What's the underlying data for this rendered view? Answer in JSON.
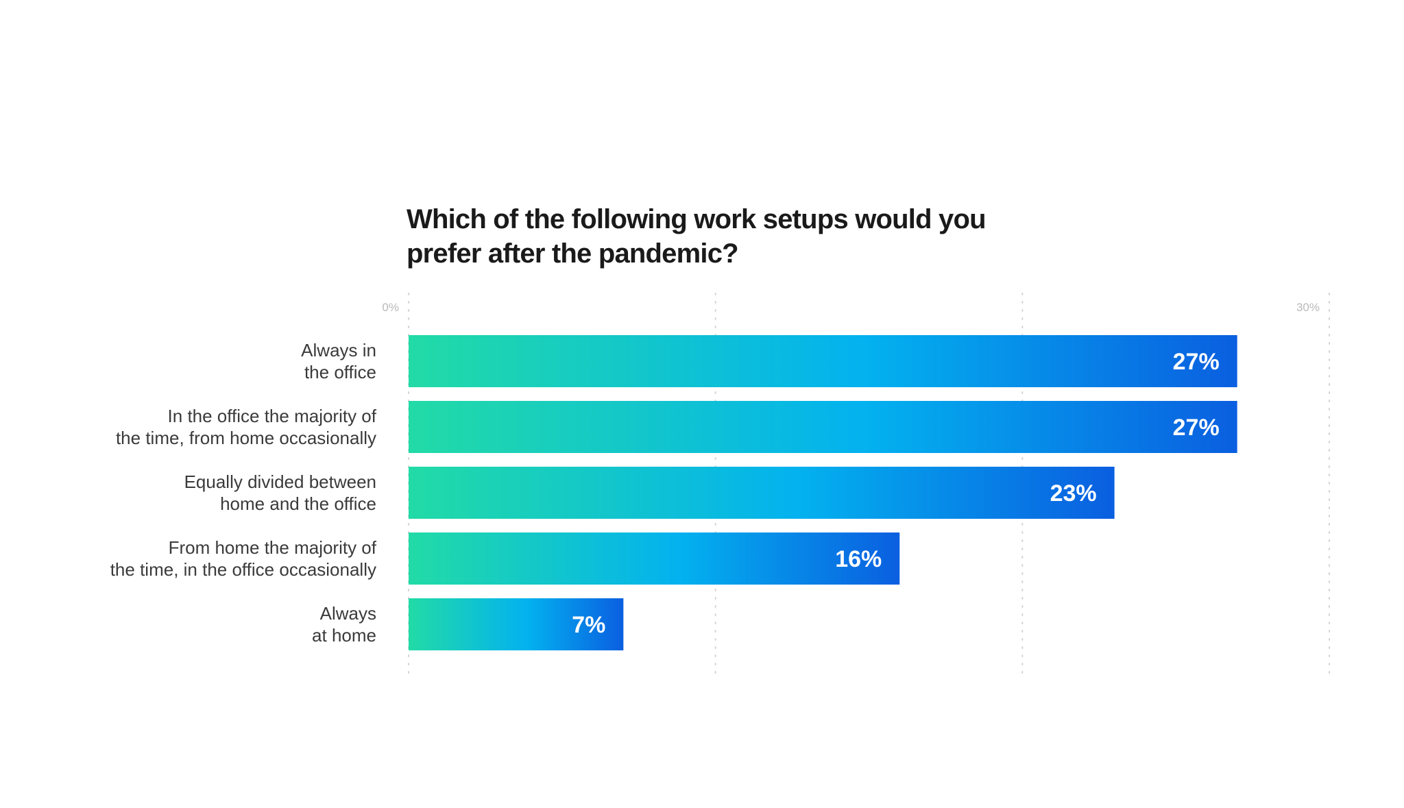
{
  "chart_data": {
    "type": "bar",
    "orientation": "horizontal",
    "title": "Which of the following work setups would you prefer after the pandemic?",
    "title_lines": [
      "Which of the following work setups would you",
      "prefer after the pandemic?"
    ],
    "categories": [
      "Always in the office",
      "In the office the majority of the time, from home occasionally",
      "Equally divided between home and the office",
      "From home the majority of the time, in the office occasionally",
      "Always at home"
    ],
    "category_lines": [
      [
        "Always in",
        "the office"
      ],
      [
        "In the office the majority of",
        "the time, from home occasionally"
      ],
      [
        "Equally divided between",
        "home and the office"
      ],
      [
        "From home the majority of",
        "the time, in the office occasionally"
      ],
      [
        "Always",
        "at home"
      ]
    ],
    "values": [
      27,
      27,
      23,
      16,
      7
    ],
    "value_labels": [
      "27%",
      "27%",
      "23%",
      "16%",
      "7%"
    ],
    "xlim": [
      0,
      30
    ],
    "xticks": [
      0,
      10,
      20,
      30
    ],
    "tick_labels": [
      {
        "value": 0,
        "label": "0%"
      },
      {
        "value": 30,
        "label": "30%"
      }
    ],
    "grid": true,
    "legend": "none",
    "colors": {
      "gradient_start": "#22dba6",
      "gradient_mid": "#03b2ef",
      "gradient_end": "#0a5fe0",
      "title": "#1a1a1a",
      "category_text": "#3a3a3a",
      "tick_text": "#b9b9b9",
      "gridline": "#d4d4d4",
      "value_text": "#ffffff"
    }
  }
}
